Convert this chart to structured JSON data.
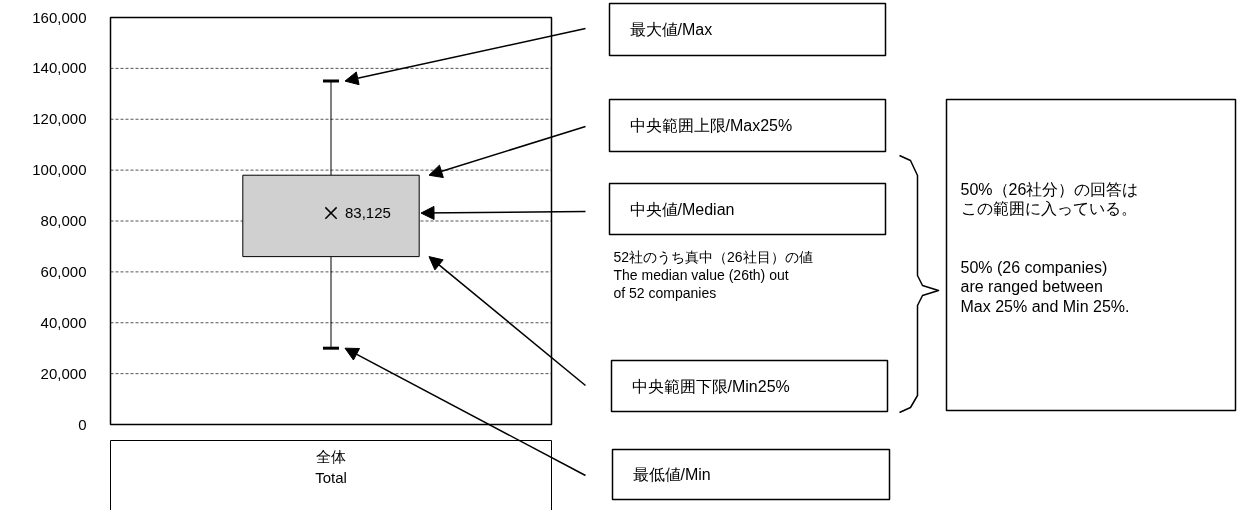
{
  "chart_data": {
    "type": "box",
    "categories": [
      "全体\nTotal"
    ],
    "series": [
      {
        "color": "#d0d0d0",
        "value_labels": [
          "83,125"
        ],
        "boxes": [
          {
            "low": 30000,
            "q1": 66000,
            "median": 83125,
            "q3": 98000,
            "high": 135000
          }
        ]
      }
    ],
    "marker": "cross",
    "grid": "y",
    "line_style": "dashed",
    "ylim": [
      0,
      160000
    ],
    "yticks": [
      {
        "value": 0,
        "label": "0"
      },
      {
        "value": 20000,
        "label": "20,000"
      },
      {
        "value": 40000,
        "label": "40,000"
      },
      {
        "value": 60000,
        "label": "60,000"
      },
      {
        "value": 80000,
        "label": "80,000"
      },
      {
        "value": 100000,
        "label": "100,000"
      },
      {
        "value": 120000,
        "label": "120,000"
      },
      {
        "value": 140000,
        "label": "140,000"
      },
      {
        "value": 160000,
        "label": "160,000"
      }
    ],
    "annotations": [
      "最大値/Max",
      "中央範囲上限/Max25%",
      "中央値/Median",
      "中央範囲下限/Min25%",
      "最低値/Min",
      "52社のうち真中（26社目）の値\nThe median value (26th) out\nof 52 companies",
      "50%（26社分）の回答はこの範囲に入っている。",
      "50% (26 companies)\nare ranged between\nMax 25% and Min 25%."
    ]
  }
}
